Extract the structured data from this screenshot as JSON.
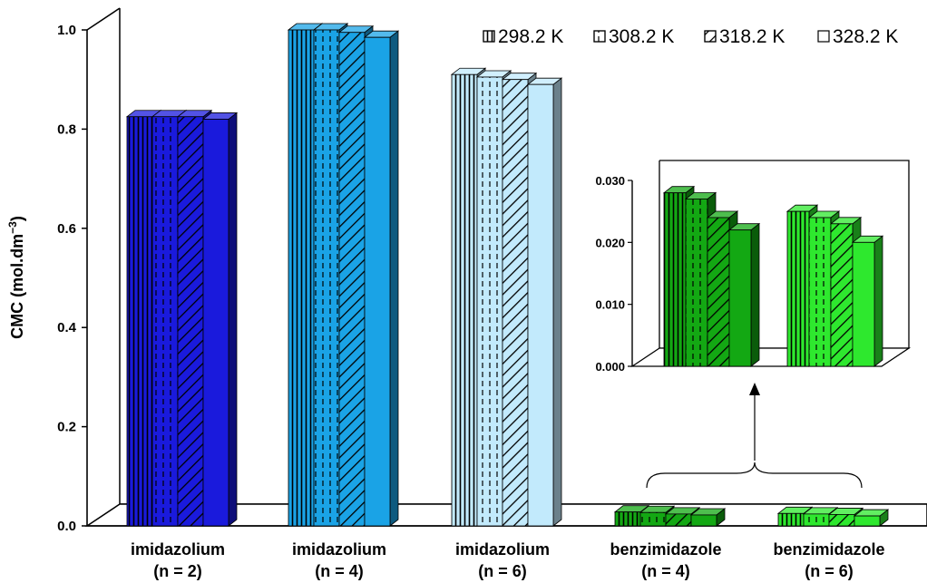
{
  "chart_data": {
    "type": "bar",
    "ylabel": "CMC (mol.dm",
    "ylabel_sup": "−3",
    "ylabel_end": ")",
    "ylim": [
      0,
      1.0
    ],
    "yticks": [
      "0.0",
      "0.2",
      "0.4",
      "0.6",
      "0.8",
      "1.0"
    ],
    "categories": [
      {
        "line1": "imidazolium",
        "line2": "(n = 2)"
      },
      {
        "line1": "imidazolium",
        "line2": "(n = 4)"
      },
      {
        "line1": "imidazolium",
        "line2": "(n = 6)"
      },
      {
        "line1": "benzimidazole",
        "line2": "(n = 4)"
      },
      {
        "line1": "benzimidazole",
        "line2": "(n = 6)"
      }
    ],
    "legend_position": "top-right",
    "series": [
      {
        "name": "298.2 K",
        "values": [
          0.825,
          1.0,
          0.91,
          0.028,
          0.025
        ]
      },
      {
        "name": "308.2 K",
        "values": [
          0.825,
          1.0,
          0.905,
          0.027,
          0.024
        ]
      },
      {
        "name": "318.2 K",
        "values": [
          0.825,
          0.995,
          0.9,
          0.024,
          0.023
        ]
      },
      {
        "name": "328.2 K",
        "values": [
          0.82,
          0.985,
          0.89,
          0.022,
          0.02
        ]
      }
    ],
    "category_colors": [
      "#1a1adc",
      "#1aa3e6",
      "#c2eafc",
      "#13a813",
      "#2ee82e"
    ],
    "inset": {
      "categories": [
        "benzimidazole (n = 4)",
        "benzimidazole (n = 6)"
      ],
      "ylim": [
        0,
        0.03
      ],
      "yticks": [
        "0.000",
        "0.010",
        "0.020",
        "0.030"
      ]
    }
  }
}
